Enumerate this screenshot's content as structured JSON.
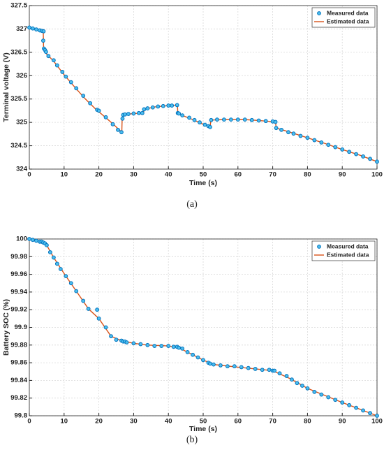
{
  "chart_data": [
    {
      "type": "line",
      "caption": "(a)",
      "xlabel": "Time (s)",
      "ylabel": "Terminal voltage (V)",
      "xlim": [
        0,
        100
      ],
      "xticks": [
        0,
        10,
        20,
        30,
        40,
        50,
        60,
        70,
        80,
        90,
        100
      ],
      "ylim": [
        324,
        327.5
      ],
      "yticks": [
        324,
        324.5,
        325,
        325.5,
        326,
        326.5,
        327,
        327.5
      ],
      "grid": true,
      "legend": "top-right",
      "series": [
        {
          "name": "Measured data",
          "type": "scatter",
          "color": "#0072bd",
          "fill": "#4dbeee",
          "x": [
            0,
            1,
            2,
            3,
            3.6,
            4.1,
            4,
            4.2,
            4.5,
            4.8,
            5.5,
            7,
            8,
            9.5,
            10.5,
            12,
            13.5,
            15.5,
            17.5,
            19.5,
            20,
            22,
            24,
            25.5,
            26.5,
            26.8,
            27,
            27.5,
            28.5,
            30,
            31.5,
            32.5,
            33,
            34,
            35.5,
            37,
            38.5,
            40,
            41,
            42.5,
            42.7,
            43,
            44,
            46,
            47.5,
            49,
            50.5,
            51.5,
            52,
            52.3,
            54,
            56,
            58,
            60,
            62,
            64,
            66,
            68,
            70,
            70.8,
            71,
            72.5,
            74.5,
            76,
            78,
            80,
            82,
            84,
            86,
            88,
            90,
            92,
            94,
            96,
            98,
            100
          ],
          "values": [
            327.03,
            327.01,
            326.99,
            326.97,
            326.96,
            326.95,
            326.75,
            326.58,
            326.55,
            326.51,
            326.42,
            326.33,
            326.22,
            326.08,
            325.98,
            325.86,
            325.73,
            325.57,
            325.41,
            325.27,
            325.25,
            325.11,
            324.96,
            324.84,
            324.79,
            325.08,
            325.16,
            325.17,
            325.18,
            325.19,
            325.2,
            325.2,
            325.28,
            325.3,
            325.32,
            325.34,
            325.35,
            325.36,
            325.36,
            325.37,
            325.2,
            325.19,
            325.15,
            325.1,
            325.05,
            325.0,
            324.95,
            324.92,
            324.9,
            325.05,
            325.06,
            325.06,
            325.06,
            325.06,
            325.06,
            325.05,
            325.04,
            325.03,
            325.02,
            325.01,
            324.88,
            324.84,
            324.79,
            324.76,
            324.71,
            324.67,
            324.62,
            324.57,
            324.52,
            324.47,
            324.42,
            324.37,
            324.32,
            324.27,
            324.22,
            324.16
          ]
        },
        {
          "name": "Estimated data",
          "type": "line",
          "color": "#d95319",
          "x": [
            0,
            1,
            2,
            3,
            4,
            4.1,
            5,
            7,
            10,
            13,
            16,
            19,
            22,
            24,
            26.6,
            26.7,
            27,
            30,
            32.8,
            33,
            36,
            40,
            42.6,
            42.7,
            44,
            47,
            50,
            52,
            52.2,
            56,
            62,
            66,
            70.8,
            71,
            75,
            80,
            85,
            90,
            95,
            100
          ],
          "values": [
            327.04,
            327.01,
            326.99,
            326.97,
            326.95,
            326.6,
            326.46,
            326.31,
            326.02,
            325.76,
            325.51,
            325.29,
            325.1,
            324.97,
            324.79,
            325.1,
            325.16,
            325.19,
            325.2,
            325.28,
            325.33,
            325.36,
            325.37,
            325.2,
            325.15,
            325.06,
            324.96,
            324.9,
            325.05,
            325.06,
            325.06,
            325.04,
            325.01,
            324.88,
            324.79,
            324.67,
            324.55,
            324.42,
            324.3,
            324.16
          ]
        }
      ]
    },
    {
      "type": "line",
      "caption": "(b)",
      "xlabel": "Time (s)",
      "ylabel": "Battery SOC (%)",
      "xlim": [
        0,
        100
      ],
      "xticks": [
        0,
        10,
        20,
        30,
        40,
        50,
        60,
        70,
        80,
        90,
        100
      ],
      "ylim": [
        99.8,
        100
      ],
      "yticks": [
        99.8,
        99.82,
        99.84,
        99.86,
        99.88,
        99.9,
        99.92,
        99.94,
        99.96,
        99.98,
        100
      ],
      "grid": true,
      "legend": "top-right",
      "series": [
        {
          "name": "Measured data",
          "type": "scatter",
          "color": "#0072bd",
          "fill": "#4dbeee",
          "x": [
            0,
            1,
            2,
            3,
            3.5,
            4,
            4.5,
            5,
            6,
            7,
            8,
            9,
            10.5,
            12,
            13.5,
            15.5,
            17,
            19.5,
            20,
            22,
            23.5,
            25,
            26.5,
            27,
            27.5,
            28,
            30,
            32,
            34,
            36,
            38,
            40,
            41.5,
            42.5,
            43,
            44,
            45.5,
            47,
            48.5,
            50,
            51.5,
            52,
            53,
            55,
            57,
            59,
            61,
            63,
            65,
            67,
            69,
            70,
            70.5,
            72,
            74,
            75.5,
            77,
            78.5,
            80,
            82,
            84,
            86,
            88,
            90,
            92,
            94,
            96,
            98,
            100
          ],
          "values": [
            100,
            99.999,
            99.998,
            99.997,
            99.997,
            99.996,
            99.995,
            99.993,
            99.985,
            99.979,
            99.972,
            99.966,
            99.958,
            99.95,
            99.941,
            99.93,
            99.921,
            99.92,
            99.91,
            99.9,
            99.89,
            99.886,
            99.885,
            99.884,
            99.884,
            99.883,
            99.882,
            99.881,
            99.88,
            99.879,
            99.879,
            99.879,
            99.878,
            99.878,
            99.877,
            99.876,
            99.872,
            99.869,
            99.866,
            99.863,
            99.86,
            99.859,
            99.858,
            99.857,
            99.856,
            99.856,
            99.855,
            99.854,
            99.853,
            99.852,
            99.852,
            99.851,
            99.851,
            99.848,
            99.845,
            99.841,
            99.837,
            99.834,
            99.831,
            99.827,
            99.824,
            99.821,
            99.818,
            99.815,
            99.812,
            99.809,
            99.806,
            99.803,
            99.8
          ]
        },
        {
          "name": "Estimated data",
          "type": "line",
          "color": "#d95319",
          "x": [
            0,
            2,
            4,
            5,
            7,
            10,
            13.5,
            17,
            20,
            23.5,
            26.5,
            30,
            34,
            40,
            43,
            46,
            50,
            53,
            60,
            70,
            75,
            80,
            90,
            100
          ],
          "values": [
            100,
            99.998,
            99.996,
            99.993,
            99.979,
            99.961,
            99.941,
            99.921,
            99.91,
            99.89,
            99.885,
            99.882,
            99.88,
            99.879,
            99.877,
            99.871,
            99.863,
            99.858,
            99.855,
            99.851,
            99.842,
            99.831,
            99.815,
            99.8
          ]
        }
      ]
    }
  ]
}
